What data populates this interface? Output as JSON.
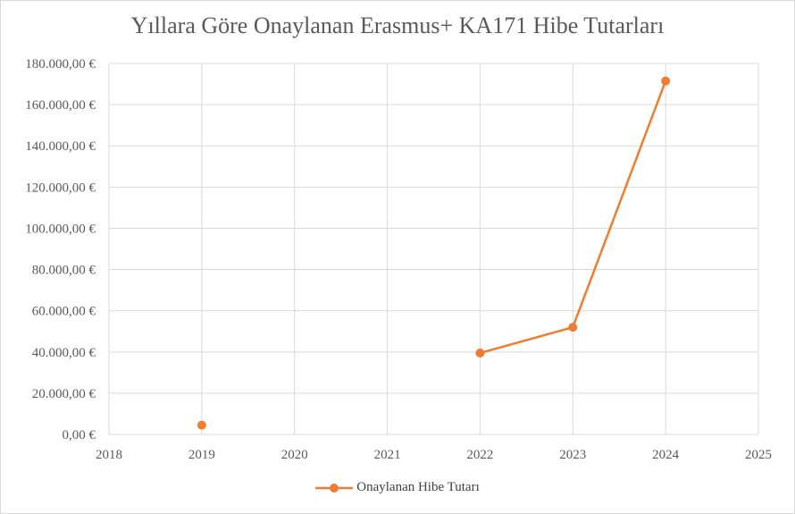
{
  "chart_data": {
    "type": "scatter",
    "title": "Yıllara Göre Onaylanan Erasmus+ KA171 Hibe Tutarları",
    "xlabel": "",
    "ylabel": "",
    "xlim": [
      2018,
      2025
    ],
    "ylim": [
      0,
      180000
    ],
    "x_ticks": [
      2018,
      2019,
      2020,
      2021,
      2022,
      2023,
      2024,
      2025
    ],
    "y_ticks": [
      0,
      20000,
      40000,
      60000,
      80000,
      100000,
      120000,
      140000,
      160000,
      180000
    ],
    "y_tick_labels": [
      "0,00 €",
      "20.000,00 €",
      "40.000,00 €",
      "60.000,00 €",
      "80.000,00 €",
      "100.000,00 €",
      "120.000,00 €",
      "140.000,00 €",
      "160.000,00 €",
      "180.000,00 €"
    ],
    "grid": true,
    "legend_position": "bottom",
    "series": [
      {
        "name": "Onaylanan Hibe Tutarı",
        "color": "#ED7D31",
        "x": [
          2019,
          2020,
          2021,
          2022,
          2023,
          2024
        ],
        "y": [
          4500,
          null,
          null,
          39500,
          52000,
          171500
        ]
      }
    ]
  }
}
